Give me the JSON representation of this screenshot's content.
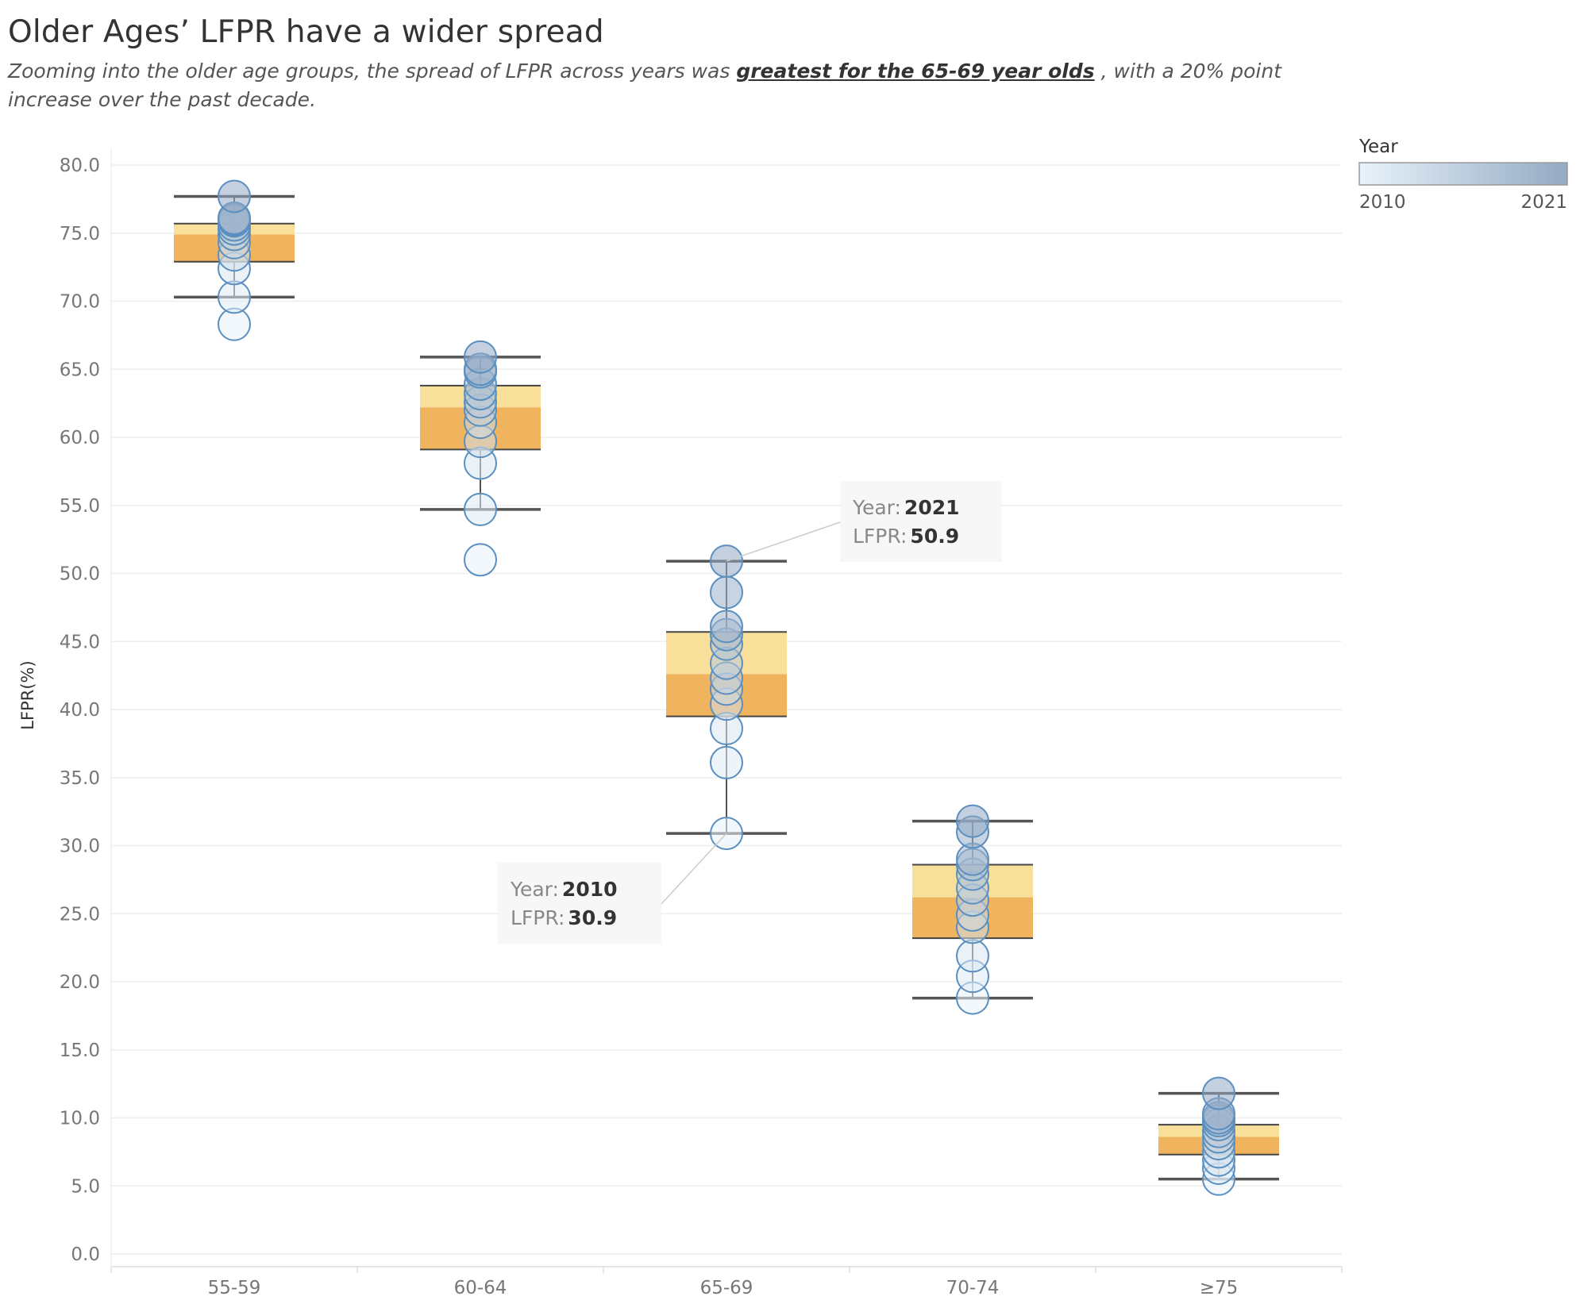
{
  "header": {
    "title": "Older Ages’ LFPR have a wider spread",
    "subtitle_pre": "Zooming into the older age groups, the spread of LFPR  across years was ",
    "subtitle_highlight": "greatest for the 65-69 year olds",
    "subtitle_post": " , with a 20% point increase over the past decade."
  },
  "legend": {
    "title": "Year",
    "min_label": "2010",
    "max_label": "2021",
    "color_light": "#e8f3fa",
    "color_dark": "#93a9c4"
  },
  "colors": {
    "box_upper": "#f9e09a",
    "box_lower": "#f0b45f",
    "whisker": "#555555",
    "circle_stroke": "#5b8fc0",
    "grid": "#eeeeee"
  },
  "tooltips": [
    {
      "year_key": "Year:",
      "year_val": "2010",
      "lfpr_key": "LFPR:",
      "lfpr_val": "30.9"
    },
    {
      "year_key": "Year:",
      "year_val": "2021",
      "lfpr_key": "LFPR:",
      "lfpr_val": "50.9"
    }
  ],
  "chart_data": {
    "type": "box",
    "title": "Older Ages’ LFPR have a wider spread",
    "xlabel": "",
    "ylabel": "LFPR(%)",
    "ylim": [
      0,
      80
    ],
    "yticks": [
      "0.0",
      "5.0",
      "10.0",
      "15.0",
      "20.0",
      "25.0",
      "30.0",
      "35.0",
      "40.0",
      "45.0",
      "50.0",
      "55.0",
      "60.0",
      "65.0",
      "70.0",
      "75.0",
      "80.0"
    ],
    "categories": [
      "55-59",
      "60-64",
      "65-69",
      "70-74",
      "≥75"
    ],
    "boxes": [
      {
        "whisker_low": 70.3,
        "q1": 72.9,
        "median": 74.9,
        "q3": 75.7,
        "whisker_high": 77.7
      },
      {
        "whisker_low": 54.7,
        "q1": 59.1,
        "median": 62.2,
        "q3": 63.8,
        "whisker_high": 65.9
      },
      {
        "whisker_low": 30.9,
        "q1": 39.5,
        "median": 42.6,
        "q3": 45.7,
        "whisker_high": 50.9
      },
      {
        "whisker_low": 18.8,
        "q1": 23.2,
        "median": 26.2,
        "q3": 28.6,
        "whisker_high": 31.8
      },
      {
        "whisker_low": 5.5,
        "q1": 7.3,
        "median": 8.6,
        "q3": 9.5,
        "whisker_high": 11.8
      }
    ],
    "points": [
      {
        "category": "55-59",
        "values": [
          68.3,
          70.3,
          72.4,
          73.4,
          74.3,
          74.9,
          75.3,
          75.6,
          75.9,
          76.0,
          76.1,
          77.7
        ]
      },
      {
        "category": "60-64",
        "values": [
          51.0,
          54.7,
          58.1,
          59.7,
          61.1,
          62.0,
          62.6,
          63.2,
          63.9,
          64.8,
          65.0,
          65.9
        ]
      },
      {
        "category": "65-69",
        "values": [
          30.9,
          36.1,
          38.6,
          40.4,
          41.5,
          42.3,
          43.4,
          44.8,
          45.5,
          46.1,
          48.6,
          50.9
        ]
      },
      {
        "category": "70-74",
        "values": [
          18.8,
          20.4,
          21.9,
          24.0,
          24.9,
          26.0,
          26.9,
          27.9,
          28.6,
          29.0,
          31.0,
          31.8
        ]
      },
      {
        "category": "≥75",
        "values": [
          5.5,
          6.3,
          6.9,
          7.5,
          8.1,
          8.6,
          9.0,
          9.5,
          9.8,
          10.0,
          10.3,
          11.8
        ]
      }
    ],
    "color_encoding": {
      "field": "Year",
      "min": 2010,
      "max": 2021
    },
    "grid": true,
    "legend_position": "top-right"
  }
}
